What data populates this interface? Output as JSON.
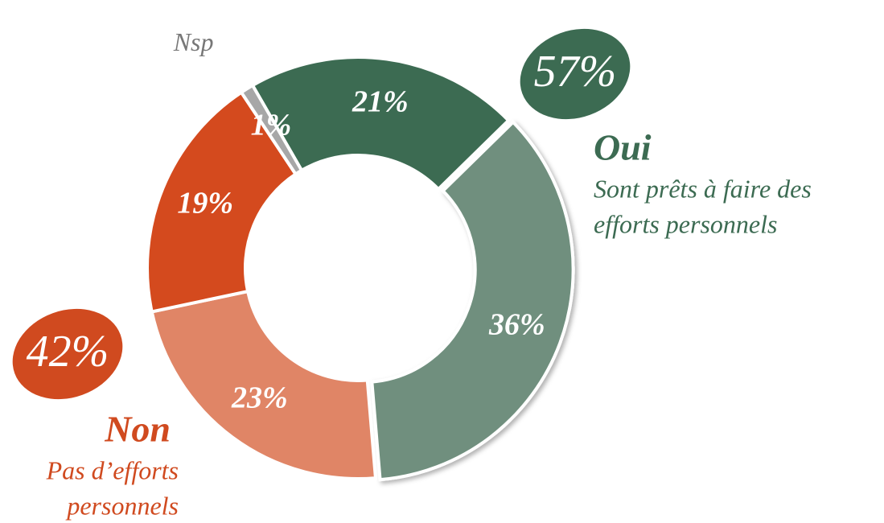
{
  "chart_data": {
    "type": "donut",
    "categories": [
      null,
      null,
      null,
      null,
      "Nsp"
    ],
    "values": [
      21,
      36,
      23,
      19,
      1
    ],
    "value_labels": [
      "21%",
      "36%",
      "23%",
      "19%",
      "1%"
    ],
    "colors": [
      "#3c6b52",
      "#6f8f7e",
      "#e08566",
      "#d44a1e",
      "#a7a7a7"
    ],
    "groups": [
      {
        "name": "Oui",
        "value": 57,
        "value_label": "57%",
        "color": "#3c6b52",
        "description": [
          "Sont prêts à faire des",
          "efforts personnels"
        ]
      },
      {
        "name": "Non",
        "value": 42,
        "value_label": "42%",
        "color": "#d04a1f",
        "description": [
          "Pas d’efforts",
          "personnels"
        ]
      }
    ]
  }
}
